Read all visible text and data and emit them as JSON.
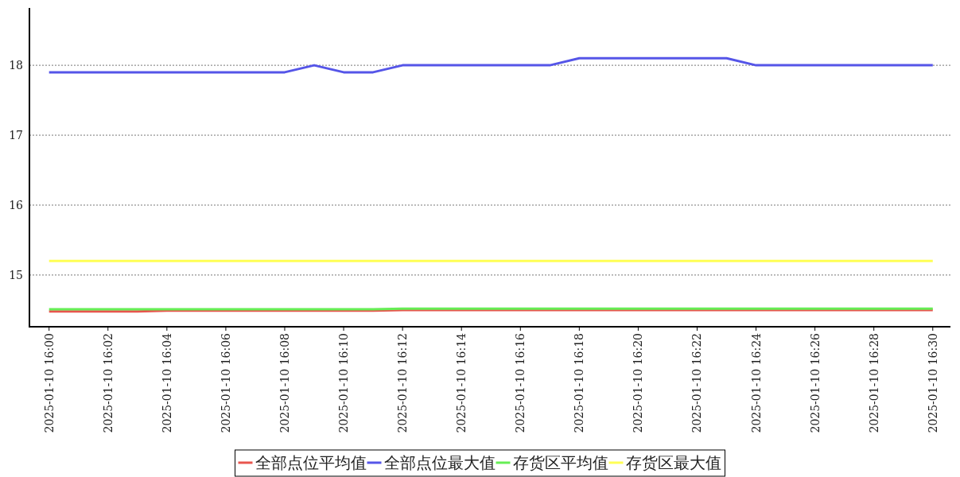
{
  "chart_data": {
    "type": "line",
    "x": [
      "2025-01-10T16:00",
      "2025-01-10T16:01",
      "2025-01-10T16:02",
      "2025-01-10T16:03",
      "2025-01-10T16:04",
      "2025-01-10T16:05",
      "2025-01-10T16:06",
      "2025-01-10T16:07",
      "2025-01-10T16:08",
      "2025-01-10T16:09",
      "2025-01-10T16:10",
      "2025-01-10T16:11",
      "2025-01-10T16:12",
      "2025-01-10T16:13",
      "2025-01-10T16:14",
      "2025-01-10T16:15",
      "2025-01-10T16:16",
      "2025-01-10T16:17",
      "2025-01-10T16:18",
      "2025-01-10T16:19",
      "2025-01-10T16:20",
      "2025-01-10T16:21",
      "2025-01-10T16:22",
      "2025-01-10T16:23",
      "2025-01-10T16:24",
      "2025-01-10T16:25",
      "2025-01-10T16:26",
      "2025-01-10T16:27",
      "2025-01-10T16:28",
      "2025-01-10T16:29",
      "2025-01-10T16:30"
    ],
    "series": [
      {
        "name": "全部点位平均值",
        "color": "#e8554e",
        "values": [
          14.48,
          14.48,
          14.48,
          14.48,
          14.49,
          14.49,
          14.49,
          14.49,
          14.49,
          14.49,
          14.49,
          14.49,
          14.5,
          14.5,
          14.5,
          14.5,
          14.5,
          14.5,
          14.5,
          14.5,
          14.5,
          14.5,
          14.5,
          14.5,
          14.5,
          14.5,
          14.5,
          14.5,
          14.5,
          14.5,
          14.5
        ]
      },
      {
        "name": "全部点位最大值",
        "color": "#5555e8",
        "values": [
          17.9,
          17.9,
          17.9,
          17.9,
          17.9,
          17.9,
          17.9,
          17.9,
          17.9,
          18.0,
          17.9,
          17.9,
          18.0,
          18.0,
          18.0,
          18.0,
          18.0,
          18.0,
          18.1,
          18.1,
          18.1,
          18.1,
          18.1,
          18.1,
          18.0,
          18.0,
          18.0,
          18.0,
          18.0,
          18.0,
          18.0
        ]
      },
      {
        "name": "存货区平均值",
        "color": "#66ee55",
        "values": [
          14.51,
          14.51,
          14.51,
          14.51,
          14.51,
          14.51,
          14.51,
          14.51,
          14.51,
          14.51,
          14.51,
          14.51,
          14.52,
          14.52,
          14.52,
          14.52,
          14.52,
          14.52,
          14.52,
          14.52,
          14.52,
          14.52,
          14.52,
          14.52,
          14.52,
          14.52,
          14.52,
          14.52,
          14.52,
          14.52,
          14.52
        ]
      },
      {
        "name": "存货区最大值",
        "color": "#ffff55",
        "values": [
          15.2,
          15.2,
          15.2,
          15.2,
          15.2,
          15.2,
          15.2,
          15.2,
          15.2,
          15.2,
          15.2,
          15.2,
          15.2,
          15.2,
          15.2,
          15.2,
          15.2,
          15.2,
          15.2,
          15.2,
          15.2,
          15.2,
          15.2,
          15.2,
          15.2,
          15.2,
          15.2,
          15.2,
          15.2,
          15.2,
          15.2
        ]
      }
    ],
    "xlim": [
      "2025-01-10T15:59:20",
      "2025-01-10T16:30:36"
    ],
    "xticks": [
      {
        "value": "2025-01-10T16:00",
        "label": "2025-01-10 16:00"
      },
      {
        "value": "2025-01-10T16:02",
        "label": "2025-01-10 16:02"
      },
      {
        "value": "2025-01-10T16:04",
        "label": "2025-01-10 16:04"
      },
      {
        "value": "2025-01-10T16:06",
        "label": "2025-01-10 16:06"
      },
      {
        "value": "2025-01-10T16:08",
        "label": "2025-01-10 16:08"
      },
      {
        "value": "2025-01-10T16:10",
        "label": "2025-01-10 16:10"
      },
      {
        "value": "2025-01-10T16:12",
        "label": "2025-01-10 16:12"
      },
      {
        "value": "2025-01-10T16:14",
        "label": "2025-01-10 16:14"
      },
      {
        "value": "2025-01-10T16:16",
        "label": "2025-01-10 16:16"
      },
      {
        "value": "2025-01-10T16:18",
        "label": "2025-01-10 16:18"
      },
      {
        "value": "2025-01-10T16:20",
        "label": "2025-01-10 16:20"
      },
      {
        "value": "2025-01-10T16:22",
        "label": "2025-01-10 16:22"
      },
      {
        "value": "2025-01-10T16:24",
        "label": "2025-01-10 16:24"
      },
      {
        "value": "2025-01-10T16:26",
        "label": "2025-01-10 16:26"
      },
      {
        "value": "2025-01-10T16:28",
        "label": "2025-01-10 16:28"
      },
      {
        "value": "2025-01-10T16:30",
        "label": "2025-01-10 16:30"
      }
    ],
    "ylim": [
      14.26,
      18.82
    ],
    "yticks": [
      15,
      16,
      17,
      18
    ],
    "grid": "y",
    "legend": "bottom",
    "marker": "none",
    "line_style": "solid"
  }
}
